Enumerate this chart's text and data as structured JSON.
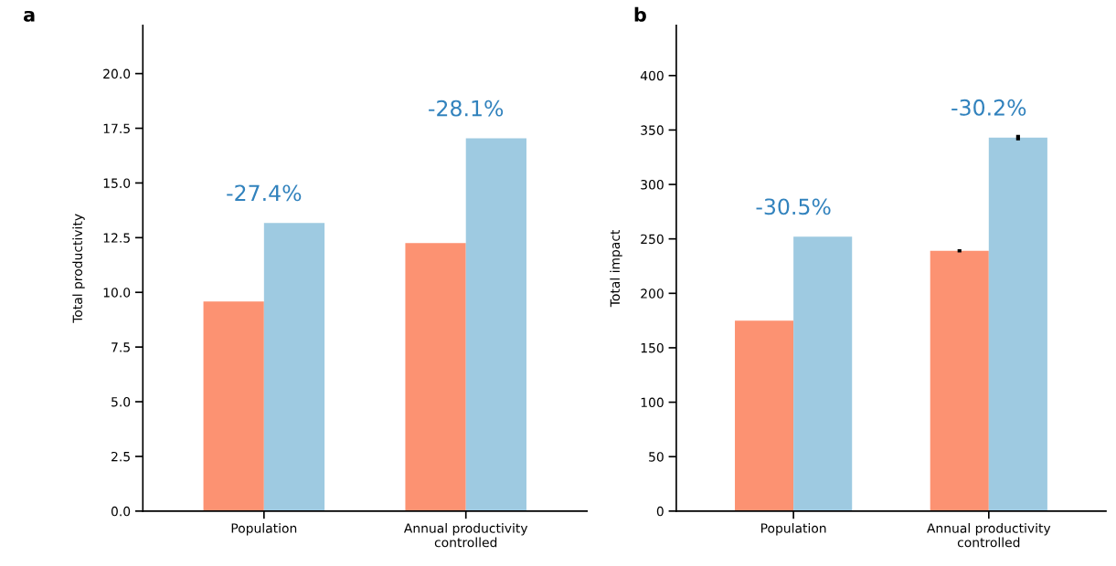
{
  "chart_data": [
    {
      "type": "bar",
      "title": "a",
      "ylabel": "Total productivity",
      "categories": [
        "Population",
        "Annual productivity\ncontrolled"
      ],
      "series": [
        {
          "color": "#fc9272",
          "values": [
            9.58,
            12.25
          ]
        },
        {
          "color": "#9ecae1",
          "values": [
            13.17,
            17.04
          ]
        }
      ],
      "ylim": [
        0,
        22.2
      ],
      "yticks": [
        {
          "value": 0,
          "label": "0.0"
        },
        2.5,
        {
          "value": 5,
          "label": "5.0"
        },
        7.5,
        {
          "value": 10,
          "label": "10.0"
        },
        12.5,
        {
          "value": 15,
          "label": "15.0"
        },
        17.5,
        {
          "value": 20,
          "label": "20.0"
        }
      ],
      "annotations": [
        "-27.4%",
        "-28.1%"
      ],
      "grid": false,
      "legend": false
    },
    {
      "type": "bar",
      "title": "b",
      "ylabel": "Total impact",
      "categories": [
        "Population",
        "Annual productivity\ncontrolled"
      ],
      "series": [
        {
          "color": "#fc9272",
          "values": [
            175,
            239
          ],
          "errors": [
            null,
            1.5
          ]
        },
        {
          "color": "#9ecae1",
          "values": [
            252,
            343
          ],
          "errors": [
            null,
            2.5
          ]
        }
      ],
      "ylim": [
        0,
        446
      ],
      "yticks": [
        0,
        50,
        100,
        150,
        200,
        250,
        300,
        350,
        400
      ],
      "annotations": [
        "-30.5%",
        "-30.2%"
      ],
      "grid": false,
      "legend": false
    }
  ]
}
